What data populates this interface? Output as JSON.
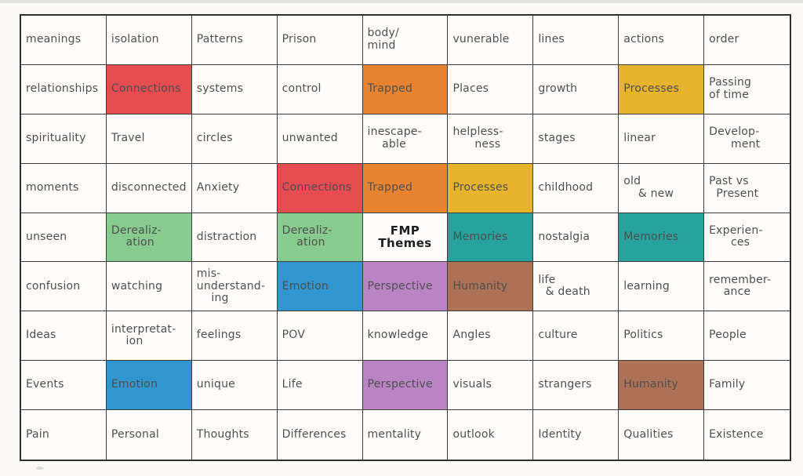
{
  "title": "FMP Themes",
  "colors": {
    "red": "#e74c51",
    "orange": "#e8832f",
    "yellow": "#e7b32c",
    "green": "#88cb8e",
    "teal": "#27a29d",
    "blue": "#3096cf",
    "purple": "#b983c4",
    "brown": "#ad7156",
    "pencil": "#4f4f4f",
    "grid_line": "#3d3d3d",
    "paper": "#fbfaf7"
  },
  "grid": {
    "rows": [
      {
        "cells": [
          {
            "label": "meanings"
          },
          {
            "label": "isolation"
          },
          {
            "label": "Patterns"
          },
          {
            "label": "Prison"
          },
          {
            "label": "body/\nmind"
          },
          {
            "label": "vunerable"
          },
          {
            "label": "lines"
          },
          {
            "label": "actions"
          },
          {
            "label": "order"
          }
        ]
      },
      {
        "cells": [
          {
            "label": "relationships"
          },
          {
            "label": "Connections",
            "bg": "red"
          },
          {
            "label": "systems"
          },
          {
            "label": "control"
          },
          {
            "label": "Trapped",
            "bg": "orange"
          },
          {
            "label": "Places"
          },
          {
            "label": "growth"
          },
          {
            "label": "Processes",
            "bg": "yellow"
          },
          {
            "label": "Passing\nof time"
          }
        ]
      },
      {
        "cells": [
          {
            "label": "spirituality"
          },
          {
            "label": "Travel"
          },
          {
            "label": "circles"
          },
          {
            "label": "unwanted"
          },
          {
            "label": "inescape-\n    able"
          },
          {
            "label": "helpless-\n      ness"
          },
          {
            "label": "stages"
          },
          {
            "label": "linear"
          },
          {
            "label": "Develop-\n      ment"
          }
        ]
      },
      {
        "cells": [
          {
            "label": "moments"
          },
          {
            "label": "disconnected"
          },
          {
            "label": "Anxiety"
          },
          {
            "label": "Connections",
            "bg": "red"
          },
          {
            "label": "Trapped",
            "bg": "orange"
          },
          {
            "label": "Processes",
            "bg": "yellow"
          },
          {
            "label": "childhood"
          },
          {
            "label": "old\n    & new"
          },
          {
            "label": "Past vs\n  Present"
          }
        ]
      },
      {
        "cells": [
          {
            "label": "unseen"
          },
          {
            "label": "Derealiz-\n    ation",
            "bg": "green"
          },
          {
            "label": "distraction"
          },
          {
            "label": "Derealiz-\n    ation",
            "bg": "green"
          },
          {
            "label": "FMP\nThemes",
            "emphasis": true
          },
          {
            "label": "Memories",
            "bg": "teal"
          },
          {
            "label": "nostalgia"
          },
          {
            "label": "Memories",
            "bg": "teal"
          },
          {
            "label": "Experien-\n      ces"
          }
        ]
      },
      {
        "cells": [
          {
            "label": "confusion"
          },
          {
            "label": "watching"
          },
          {
            "label": "mis-\nunderstand-\n    ing"
          },
          {
            "label": "Emotion",
            "bg": "blue"
          },
          {
            "label": "Perspective",
            "bg": "purple"
          },
          {
            "label": "Humanity",
            "bg": "brown"
          },
          {
            "label": "life\n  & death"
          },
          {
            "label": "learning"
          },
          {
            "label": "remember-\n    ance"
          }
        ]
      },
      {
        "cells": [
          {
            "label": "Ideas"
          },
          {
            "label": "interpretat-\n    ion"
          },
          {
            "label": "feelings"
          },
          {
            "label": "POV"
          },
          {
            "label": "knowledge"
          },
          {
            "label": "Angles"
          },
          {
            "label": "culture"
          },
          {
            "label": "Politics"
          },
          {
            "label": "People"
          }
        ]
      },
      {
        "cells": [
          {
            "label": "Events"
          },
          {
            "label": "Emotion",
            "bg": "blue"
          },
          {
            "label": "unique"
          },
          {
            "label": "Life"
          },
          {
            "label": "Perspective",
            "bg": "purple"
          },
          {
            "label": "visuals"
          },
          {
            "label": "strangers"
          },
          {
            "label": "Humanity",
            "bg": "brown"
          },
          {
            "label": "Family"
          }
        ]
      },
      {
        "cells": [
          {
            "label": "Pain"
          },
          {
            "label": "Personal"
          },
          {
            "label": "Thoughts"
          },
          {
            "label": "Differences"
          },
          {
            "label": "mentality"
          },
          {
            "label": "outlook"
          },
          {
            "label": "Identity"
          },
          {
            "label": "Qualities"
          },
          {
            "label": "Existence"
          }
        ]
      }
    ]
  }
}
